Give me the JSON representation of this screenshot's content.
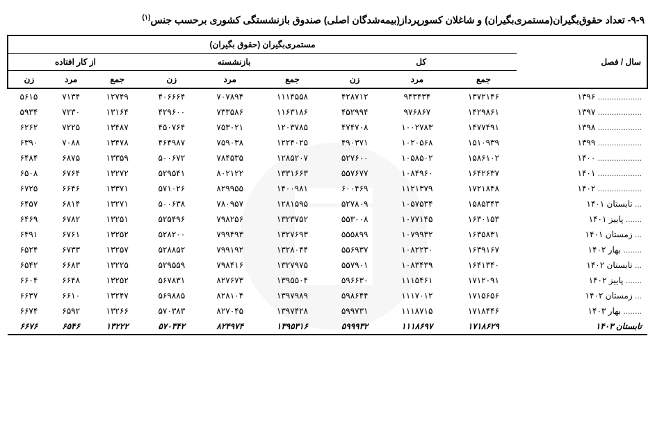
{
  "title_prefix": "۹-۹- ",
  "title_main": "تعداد حقوق‌بگیران(مستمری‌بگیران) و شاغلان کسورپرداز(بیمه‌شدگان اصلی) صندوق بازنشستگی کشوری برحسب جنس",
  "title_sup": "(۱)",
  "headers": {
    "year": "سال / فصل",
    "pensioners": "مستمری‌بگیران (حقوق بگیران)",
    "total": "کل",
    "retired": "بازنشسته",
    "disabled": "از کار افتاده",
    "sum": "جمع",
    "male": "مرد",
    "female": "زن"
  },
  "rows": [
    {
      "year": "۱۳۹۶",
      "dots": "...................",
      "t_sum": "۱۳۷۲۱۴۶",
      "t_m": "۹۴۳۴۳۴",
      "t_f": "۴۲۸۷۱۲",
      "r_sum": "۱۱۱۴۵۵۸",
      "r_m": "۷۰۷۸۹۴",
      "r_f": "۴۰۶۶۶۴",
      "d_sum": "۱۲۷۴۹",
      "d_m": "۷۱۳۴",
      "d_f": "۵۶۱۵"
    },
    {
      "year": "۱۳۹۷",
      "dots": "...................",
      "t_sum": "۱۴۲۹۸۶۱",
      "t_m": "۹۷۶۸۶۷",
      "t_f": "۴۵۲۹۹۴",
      "r_sum": "۱۱۶۳۱۸۶",
      "r_m": "۷۳۳۵۸۶",
      "r_f": "۴۲۹۶۰۰",
      "d_sum": "۱۳۱۶۴",
      "d_m": "۷۲۳۰",
      "d_f": "۵۹۳۴"
    },
    {
      "year": "۱۳۹۸",
      "dots": "...................",
      "t_sum": "۱۴۷۷۴۹۱",
      "t_m": "۱۰۰۲۷۸۳",
      "t_f": "۴۷۴۷۰۸",
      "r_sum": "۱۲۰۳۷۸۵",
      "r_m": "۷۵۳۰۲۱",
      "r_f": "۴۵۰۷۶۴",
      "d_sum": "۱۳۴۸۷",
      "d_m": "۷۲۲۵",
      "d_f": "۶۲۶۲"
    },
    {
      "year": "۱۳۹۹",
      "dots": "...................",
      "t_sum": "۱۵۱۰۹۳۹",
      "t_m": "۱۰۲۰۵۶۸",
      "t_f": "۴۹۰۳۷۱",
      "r_sum": "۱۲۲۴۰۲۵",
      "r_m": "۷۵۹۰۳۸",
      "r_f": "۴۶۴۹۸۷",
      "d_sum": "۱۳۴۷۸",
      "d_m": "۷۰۸۸",
      "d_f": "۶۳۹۰"
    },
    {
      "year": "۱۴۰۰",
      "dots": "...................",
      "t_sum": "۱۵۸۶۱۰۲",
      "t_m": "۱۰۵۸۵۰۲",
      "t_f": "۵۲۷۶۰۰",
      "r_sum": "۱۲۸۵۲۰۷",
      "r_m": "۷۸۴۵۳۵",
      "r_f": "۵۰۰۶۷۲",
      "d_sum": "۱۳۳۵۹",
      "d_m": "۶۸۷۵",
      "d_f": "۶۴۸۴"
    },
    {
      "year": "۱۴۰۱",
      "dots": "...................",
      "t_sum": "۱۶۴۲۶۳۷",
      "t_m": "۱۰۸۴۹۶۰",
      "t_f": "۵۵۷۶۷۷",
      "r_sum": "۱۳۳۱۶۶۳",
      "r_m": "۸۰۲۱۲۲",
      "r_f": "۵۲۹۵۴۱",
      "d_sum": "۱۳۲۷۲",
      "d_m": "۶۷۶۴",
      "d_f": "۶۵۰۸"
    },
    {
      "year": "۱۴۰۲",
      "dots": "...................",
      "t_sum": "۱۷۲۱۸۴۸",
      "t_m": "۱۱۲۱۳۷۹",
      "t_f": "۶۰۰۴۶۹",
      "r_sum": "۱۴۰۰۹۸۱",
      "r_m": "۸۲۹۹۵۵",
      "r_f": "۵۷۱۰۲۶",
      "d_sum": "۱۳۳۷۱",
      "d_m": "۶۶۴۶",
      "d_f": "۶۷۲۵"
    },
    {
      "year": "تابستان ۱۴۰۱",
      "dots": "...",
      "t_sum": "۱۵۸۵۳۴۳",
      "t_m": "۱۰۵۷۵۳۴",
      "t_f": "۵۲۷۸۰۹",
      "r_sum": "۱۲۸۱۵۹۵",
      "r_m": "۷۸۰۹۵۷",
      "r_f": "۵۰۰۶۳۸",
      "d_sum": "۱۳۲۷۱",
      "d_m": "۶۸۱۴",
      "d_f": "۶۴۵۷"
    },
    {
      "year": "پاییز ۱۴۰۱",
      "dots": ".......",
      "t_sum": "۱۶۳۰۱۵۳",
      "t_m": "۱۰۷۷۱۴۵",
      "t_f": "۵۵۳۰۰۸",
      "r_sum": "۱۳۲۳۷۵۲",
      "r_m": "۷۹۸۲۵۶",
      "r_f": "۵۲۵۴۹۶",
      "d_sum": "۱۳۲۵۱",
      "d_m": "۶۷۸۲",
      "d_f": "۶۴۶۹"
    },
    {
      "year": "زمستان ۱۴۰۱",
      "dots": "...",
      "t_sum": "۱۶۳۵۸۳۱",
      "t_m": "۱۰۷۹۹۳۲",
      "t_f": "۵۵۵۸۹۹",
      "r_sum": "۱۳۲۷۶۹۳",
      "r_m": "۷۹۹۴۹۳",
      "r_f": "۵۲۸۲۰۰",
      "d_sum": "۱۳۲۵۲",
      "d_m": "۶۷۶۱",
      "d_f": "۶۴۹۱"
    },
    {
      "year": "بهار ۱۴۰۲",
      "dots": "........",
      "t_sum": "۱۶۳۹۱۶۷",
      "t_m": "۱۰۸۲۲۳۰",
      "t_f": "۵۵۶۹۳۷",
      "r_sum": "۱۳۲۸۰۴۴",
      "r_m": "۷۹۹۱۹۲",
      "r_f": "۵۲۸۸۵۲",
      "d_sum": "۱۳۲۵۷",
      "d_m": "۶۷۳۳",
      "d_f": "۶۵۲۴"
    },
    {
      "year": "تابستان ۱۴۰۲",
      "dots": "...",
      "t_sum": "۱۶۴۱۳۴۰",
      "t_m": "۱۰۸۳۴۳۹",
      "t_f": "۵۵۷۹۰۱",
      "r_sum": "۱۳۲۷۹۷۵",
      "r_m": "۷۹۸۴۱۶",
      "r_f": "۵۲۹۵۵۹",
      "d_sum": "۱۳۲۲۵",
      "d_m": "۶۶۸۳",
      "d_f": "۶۵۴۲"
    },
    {
      "year": "پاییز ۱۴۰۲",
      "dots": ".......",
      "t_sum": "۱۷۱۲۰۹۱",
      "t_m": "۱۱۱۵۴۶۱",
      "t_f": "۵۹۶۶۳۰",
      "r_sum": "۱۳۹۵۵۰۴",
      "r_m": "۸۲۷۶۷۳",
      "r_f": "۵۶۷۸۳۱",
      "d_sum": "۱۳۲۵۲",
      "d_m": "۶۶۴۸",
      "d_f": "۶۶۰۴"
    },
    {
      "year": "زمستان ۱۴۰۲",
      "dots": "...",
      "t_sum": "۱۷۱۵۶۵۶",
      "t_m": "۱۱۱۷۰۱۲",
      "t_f": "۵۹۸۶۴۴",
      "r_sum": "۱۳۹۷۹۸۹",
      "r_m": "۸۲۸۱۰۴",
      "r_f": "۵۶۹۸۸۵",
      "d_sum": "۱۳۲۴۷",
      "d_m": "۶۶۱۰",
      "d_f": "۶۶۳۷"
    },
    {
      "year": "بهار ۱۴۰۳",
      "dots": "........",
      "t_sum": "۱۷۱۸۴۴۶",
      "t_m": "۱۱۱۸۷۱۵",
      "t_f": "۵۹۹۷۳۱",
      "r_sum": "۱۳۹۷۴۲۸",
      "r_m": "۸۲۷۰۴۵",
      "r_f": "۵۷۰۳۸۳",
      "d_sum": "۱۳۲۶۶",
      "d_m": "۶۵۹۲",
      "d_f": "۶۶۷۴"
    },
    {
      "year": "تابستان ۱۴۰۳",
      "dots": "",
      "t_sum": "۱۷۱۸۶۲۹",
      "t_m": "۱۱۱۸۶۹۷",
      "t_f": "۵۹۹۹۳۲",
      "r_sum": "۱۳۹۵۳۱۶",
      "r_m": "۸۲۴۹۷۴",
      "r_f": "۵۷۰۳۴۲",
      "d_sum": "۱۳۲۲۲",
      "d_m": "۶۵۴۶",
      "d_f": "۶۶۷۶",
      "last": true
    }
  ],
  "styling": {
    "background": "#ffffff",
    "text_color": "#000000",
    "border_color": "#000000",
    "watermark_color": "#cccccc",
    "title_fontsize": 14,
    "cell_fontsize": 12
  }
}
